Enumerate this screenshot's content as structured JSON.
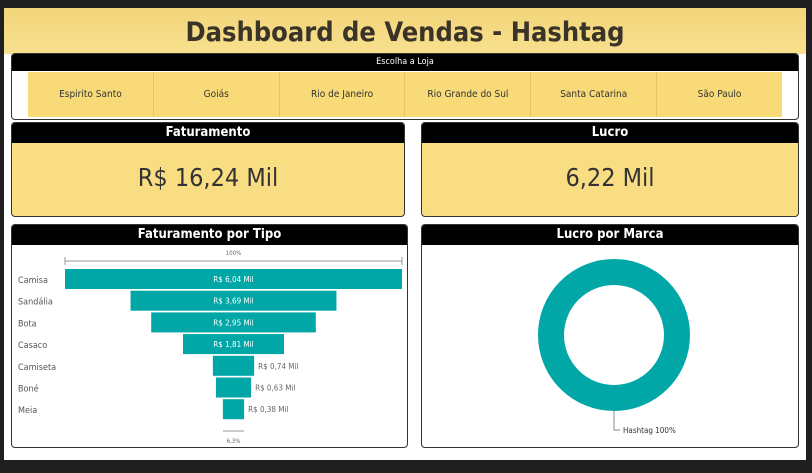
{
  "header": {
    "title": "Dashboard de Vendas - Hashtag"
  },
  "slicer": {
    "title": "Escolha a Loja",
    "options": [
      "Espirito Santo",
      "Goiás",
      "Rio de Janeiro",
      "Rio Grande do Sul",
      "Santa Catarina",
      "São Paulo"
    ]
  },
  "cards": {
    "faturamento": {
      "title": "Faturamento",
      "value": "R$ 16,24 Mil"
    },
    "lucro": {
      "title": "Lucro",
      "value": "6,22 Mil"
    }
  },
  "colors": {
    "accent": "#01a6a6",
    "card": "#f8dd82",
    "header": "#f5da80"
  },
  "chart_data": [
    {
      "type": "funnel",
      "title": "Faturamento por Tipo",
      "categories": [
        "Camisa",
        "Sandália",
        "Bota",
        "Casaco",
        "Camiseta",
        "Boné",
        "Meia"
      ],
      "values": [
        6.04,
        3.69,
        2.95,
        1.81,
        0.74,
        0.63,
        0.38
      ],
      "labels": [
        "R$ 6,04 Mil",
        "R$ 3,69 Mil",
        "R$ 2,95 Mil",
        "R$ 1,81 Mil",
        "R$ 0,74 Mil",
        "R$ 0,63 Mil",
        "R$ 0,38 Mil"
      ],
      "top_percent": "100%",
      "bottom_percent": "6,3%"
    },
    {
      "type": "pie",
      "title": "Lucro por Marca",
      "donut": true,
      "categories": [
        "Hashtag"
      ],
      "values": [
        100
      ],
      "labels": [
        "Hashtag 100%"
      ]
    }
  ]
}
